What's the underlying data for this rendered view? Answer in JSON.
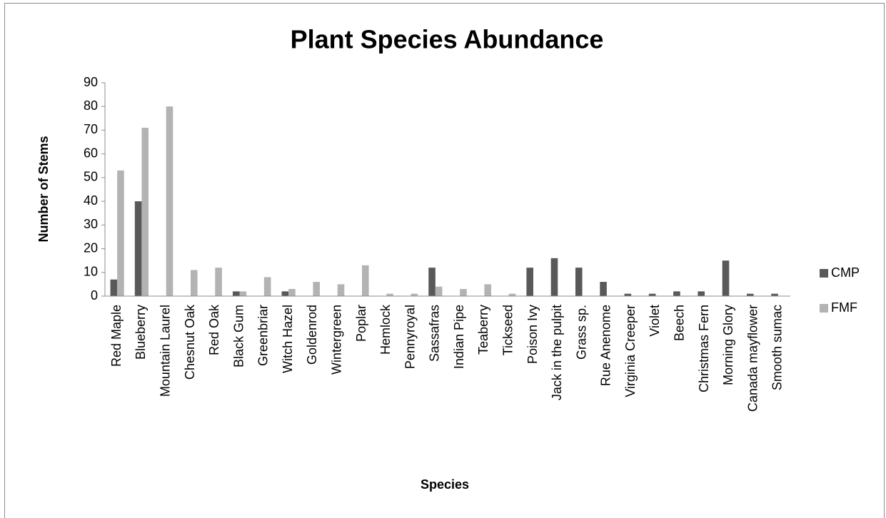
{
  "chart_data": {
    "type": "bar",
    "title": "Plant Species Abundance",
    "x_label": "Species",
    "y_label": "Number of Stems",
    "categories": [
      "Red Maple",
      "Blueberry",
      "Mountain Laurel",
      "Chesnut Oak",
      "Red Oak",
      "Black Gum",
      "Greenbriar",
      "Witch Hazel",
      "Goldenrod",
      "Wintergreen",
      "Poplar",
      "Hemlock",
      "Pennyroyal",
      "Sassafras",
      "Indian Pipe",
      "Teaberry",
      "Tickseed",
      "Poison Ivy",
      "Jack in the pulpit",
      "Grass sp.",
      "Rue Anenome",
      "Virginia Creeper",
      "Violet",
      "Beech",
      "Christmas Fern",
      "Morning Glory",
      "Canada mayflower",
      "Smooth sumac"
    ],
    "series": [
      {
        "name": "CMP",
        "color": "#595959",
        "values": [
          7,
          40,
          0,
          0,
          0,
          2,
          0,
          2,
          0,
          0,
          0,
          0,
          0,
          12,
          0,
          0,
          0,
          12,
          16,
          12,
          6,
          1,
          1,
          2,
          2,
          15,
          1,
          1
        ]
      },
      {
        "name": "FMF",
        "color": "#b3b3b3",
        "values": [
          53,
          71,
          80,
          11,
          12,
          2,
          8,
          3,
          6,
          5,
          13,
          1,
          1,
          4,
          3,
          5,
          1,
          0,
          0,
          0,
          0,
          0,
          0,
          0,
          0,
          0,
          0,
          0
        ]
      }
    ],
    "ylim": [
      0,
      90
    ],
    "yticks": [
      0,
      10,
      20,
      30,
      40,
      50,
      60,
      70,
      80,
      90
    ],
    "grid": false,
    "legend": "right"
  }
}
